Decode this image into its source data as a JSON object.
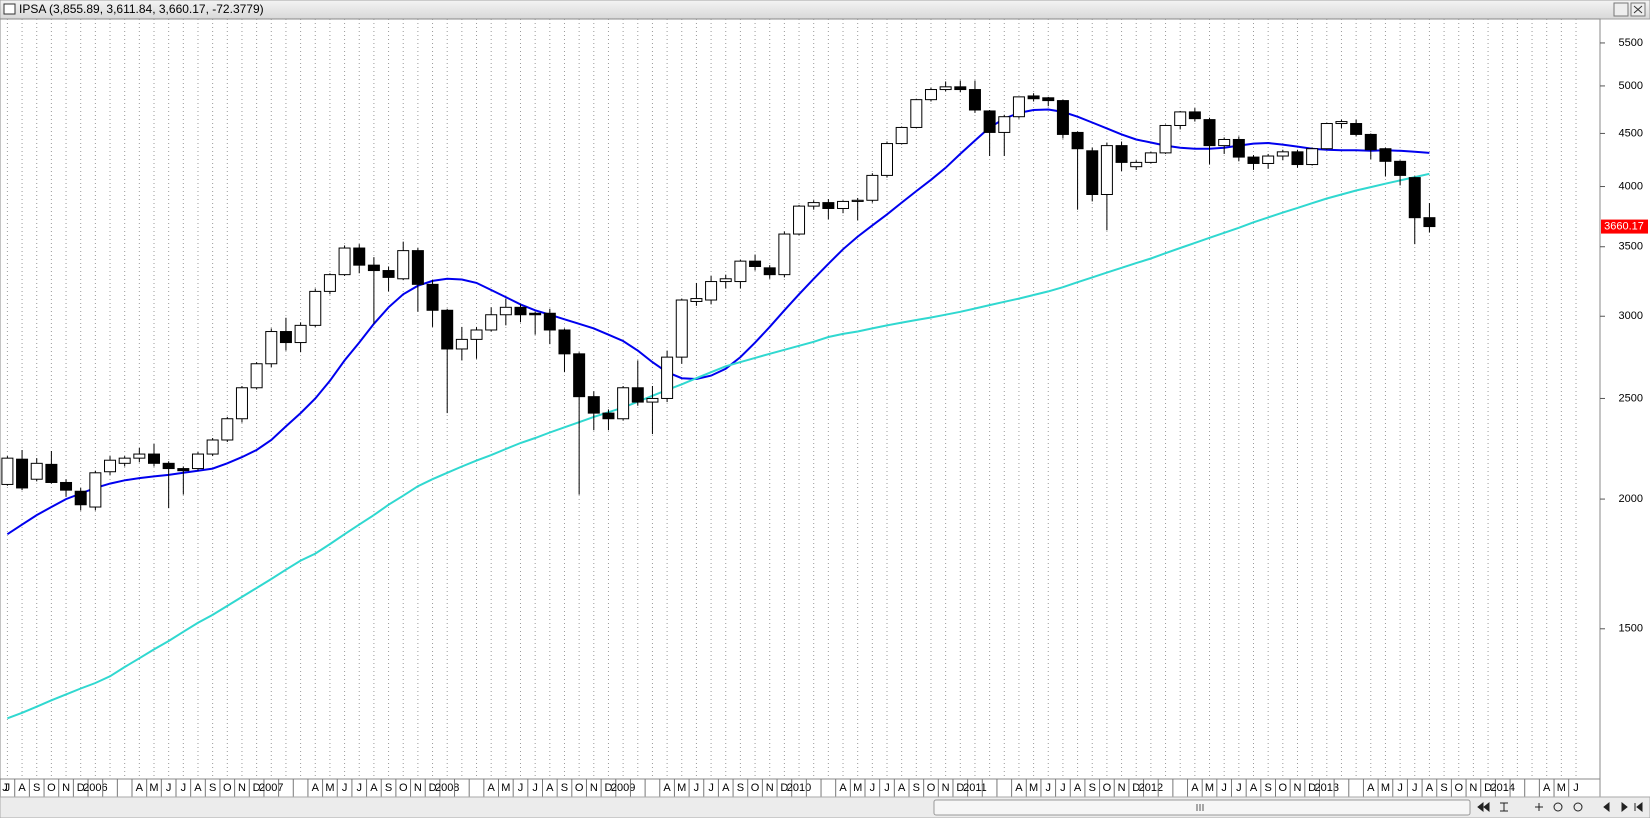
{
  "chart_data": {
    "type": "candlestick",
    "title": "IPSA (3,855.89, 3,611.84, 3,660.17, -72.3779)",
    "categories": [
      "J",
      "J",
      "A",
      "S",
      "O",
      "N",
      "D",
      "2006",
      null,
      null,
      "A",
      "M",
      "J",
      "J",
      "A",
      "S",
      "O",
      "N",
      "D",
      "2007",
      null,
      null,
      "A",
      "M",
      "J",
      "J",
      "A",
      "S",
      "O",
      "N",
      "D",
      "2008",
      null,
      null,
      "A",
      "M",
      "J",
      "J",
      "A",
      "S",
      "O",
      "N",
      "D",
      "2009",
      null,
      null,
      "A",
      "M",
      "J",
      "J",
      "A",
      "S",
      "O",
      "N",
      "D",
      "2010",
      null,
      null,
      "A",
      "M",
      "J",
      "J",
      "A",
      "S",
      "O",
      "N",
      "D",
      "2011",
      null,
      null,
      "A",
      "M",
      "J",
      "J",
      "A",
      "S",
      "O",
      "N",
      "D",
      "2012",
      null,
      null,
      "A",
      "M",
      "J",
      "J",
      "A",
      "S",
      "O",
      "N",
      "D",
      "2013",
      null,
      null,
      "A",
      "M",
      "J",
      "J",
      "A",
      "S",
      "O",
      "N",
      "D",
      "2014",
      null,
      null,
      "A",
      "M",
      "J"
    ],
    "open": [
      null,
      2066,
      2185,
      2090,
      2160,
      2075,
      2035,
      1965,
      2125,
      2165,
      2190,
      2210,
      2165,
      2140,
      2140,
      2210,
      2280,
      2390,
      2560,
      2700,
      2900,
      2830,
      2940,
      3170,
      3290,
      3490,
      3360,
      3320,
      3260,
      3470,
      3220,
      3040,
      2790,
      2850,
      2910,
      3010,
      3060,
      3020,
      3020,
      2910,
      2760,
      2510,
      2420,
      2390,
      2560,
      2480,
      2500,
      2740,
      3100,
      3110,
      3240,
      3240,
      3390,
      3340,
      3290,
      3600,
      3830,
      3860,
      3810,
      3870,
      3880,
      4100,
      4400,
      4560,
      4850,
      4960,
      4990,
      4960,
      4730,
      4510,
      4670,
      4890,
      4870,
      4840,
      4510,
      4330,
      3930,
      4380,
      4180,
      4220,
      4310,
      4580,
      4720,
      4640,
      4380,
      4440,
      4270,
      4210,
      4280,
      4320,
      4200,
      4350,
      4600,
      4600,
      4490,
      4350,
      4230,
      4080,
      3733,
      null,
      null,
      null,
      null,
      null,
      null,
      null,
      null,
      null,
      null
    ],
    "high": [
      null,
      2200,
      2230,
      2190,
      2225,
      2090,
      2050,
      2130,
      2200,
      2200,
      2240,
      2260,
      2175,
      2150,
      2220,
      2290,
      2400,
      2570,
      2710,
      2920,
      2990,
      2960,
      3190,
      3300,
      3510,
      3520,
      3420,
      3350,
      3540,
      3490,
      3250,
      3050,
      2930,
      2930,
      3060,
      3120,
      3080,
      3030,
      3050,
      2920,
      2770,
      2540,
      2440,
      2570,
      2720,
      2570,
      2780,
      3120,
      3230,
      3280,
      3290,
      3400,
      3440,
      3360,
      3620,
      3840,
      3880,
      3890,
      3880,
      3900,
      4120,
      4420,
      4570,
      4860,
      4980,
      5050,
      5060,
      5060,
      4740,
      4690,
      4880,
      4920,
      4880,
      4850,
      4520,
      4360,
      4410,
      4420,
      4240,
      4320,
      4590,
      4730,
      4760,
      4660,
      4460,
      4470,
      4290,
      4300,
      4340,
      4340,
      4360,
      4610,
      4640,
      4640,
      4500,
      4360,
      4240,
      4090,
      3855.89,
      null,
      null,
      null,
      null,
      null,
      null,
      null,
      null,
      null,
      null
    ],
    "low": [
      null,
      2060,
      2040,
      2080,
      2070,
      2010,
      1950,
      1950,
      2110,
      2150,
      2170,
      2150,
      1960,
      2020,
      2130,
      2200,
      2270,
      2370,
      2550,
      2680,
      2780,
      2770,
      2930,
      3150,
      3280,
      3300,
      2950,
      3170,
      3250,
      3030,
      2930,
      2420,
      2720,
      2730,
      2900,
      2940,
      2960,
      2880,
      2820,
      2650,
      2020,
      2330,
      2330,
      2380,
      2460,
      2310,
      2480,
      2700,
      3070,
      3080,
      3190,
      3190,
      3320,
      3260,
      3270,
      3590,
      3800,
      3720,
      3770,
      3710,
      3860,
      4080,
      4390,
      4550,
      4830,
      4940,
      4930,
      4710,
      4280,
      4280,
      4650,
      4830,
      4780,
      4450,
      3800,
      3870,
      3630,
      4140,
      4150,
      4210,
      4300,
      4540,
      4620,
      4200,
      4300,
      4230,
      4150,
      4160,
      4240,
      4170,
      4190,
      4340,
      4550,
      4470,
      4250,
      4090,
      4010,
      3520,
      3611.84,
      null,
      null,
      null,
      null,
      null,
      null,
      null,
      null,
      null,
      null
    ],
    "close": [
      null,
      2190,
      2050,
      2165,
      2075,
      2040,
      1975,
      2120,
      2180,
      2190,
      2210,
      2165,
      2140,
      2130,
      2210,
      2280,
      2390,
      2560,
      2700,
      2900,
      2830,
      2940,
      3170,
      3290,
      3490,
      3360,
      3320,
      3270,
      3470,
      3220,
      3040,
      2790,
      2850,
      2910,
      3010,
      3060,
      3010,
      3010,
      2910,
      2760,
      2510,
      2420,
      2390,
      2560,
      2480,
      2500,
      2740,
      3110,
      3120,
      3240,
      3260,
      3390,
      3350,
      3290,
      3600,
      3830,
      3860,
      3810,
      3870,
      3880,
      4100,
      4400,
      4560,
      4850,
      4960,
      4990,
      4960,
      4740,
      4510,
      4670,
      4880,
      4860,
      4840,
      4490,
      4350,
      3930,
      4380,
      4220,
      4220,
      4310,
      4580,
      4720,
      4650,
      4380,
      4440,
      4270,
      4210,
      4280,
      4320,
      4200,
      4350,
      4600,
      4620,
      4490,
      4340,
      4230,
      4100,
      3733,
      3660.17,
      null,
      null,
      null,
      null,
      null,
      null,
      null,
      null,
      null,
      null
    ],
    "up_color": "#ffffff",
    "down_color": "#000000",
    "overlays": [
      {
        "color": "#0000ee",
        "values": [
          null,
          1850,
          1890,
          1930,
          1965,
          2000,
          2025,
          2050,
          2070,
          2085,
          2095,
          2103,
          2110,
          2120,
          2130,
          2140,
          2165,
          2195,
          2230,
          2280,
          2350,
          2420,
          2500,
          2600,
          2720,
          2830,
          2950,
          3060,
          3150,
          3210,
          3245,
          3260,
          3255,
          3230,
          3180,
          3130,
          3080,
          3040,
          3010,
          2980,
          2950,
          2920,
          2880,
          2840,
          2780,
          2710,
          2650,
          2615,
          2610,
          2630,
          2670,
          2740,
          2830,
          2930,
          3040,
          3150,
          3260,
          3370,
          3480,
          3580,
          3670,
          3760,
          3860,
          3960,
          4060,
          4170,
          4300,
          4430,
          4560,
          4650,
          4710,
          4740,
          4745,
          4720,
          4670,
          4610,
          4550,
          4490,
          4440,
          4410,
          4380,
          4360,
          4350,
          4350,
          4360,
          4380,
          4400,
          4405,
          4390,
          4370,
          4350,
          4340,
          4335,
          4335,
          4330,
          4335,
          4330,
          4320,
          4310,
          null,
          null,
          null,
          null,
          null,
          null,
          null,
          null,
          null,
          null
        ]
      },
      {
        "color": "#30d8d0",
        "values": [
          null,
          1230,
          1245,
          1262,
          1280,
          1297,
          1314,
          1330,
          1350,
          1378,
          1405,
          1433,
          1460,
          1490,
          1520,
          1547,
          1578,
          1610,
          1642,
          1675,
          1710,
          1745,
          1772,
          1810,
          1850,
          1890,
          1930,
          1975,
          2015,
          2058,
          2090,
          2120,
          2150,
          2178,
          2205,
          2235,
          2265,
          2290,
          2318,
          2345,
          2372,
          2400,
          2425,
          2450,
          2482,
          2515,
          2548,
          2580,
          2615,
          2650,
          2685,
          2710,
          2735,
          2760,
          2785,
          2810,
          2835,
          2865,
          2885,
          2900,
          2920,
          2940,
          2958,
          2975,
          2992,
          3010,
          3030,
          3052,
          3075,
          3098,
          3120,
          3145,
          3170,
          3200,
          3235,
          3270,
          3305,
          3340,
          3375,
          3410,
          3450,
          3490,
          3530,
          3570,
          3610,
          3650,
          3695,
          3735,
          3775,
          3815,
          3855,
          3895,
          3930,
          3965,
          3995,
          4025,
          4055,
          4085,
          4115,
          null,
          null,
          null,
          null,
          null,
          null,
          null,
          null,
          null,
          null
        ]
      }
    ],
    "ylim": [
      1075,
      5800
    ],
    "yticks": [
      1500,
      2000,
      2500,
      3000,
      3500,
      4000,
      4500,
      5000,
      5500
    ],
    "log_scale": true,
    "grid": "x",
    "last_label_color": "#ff0000"
  }
}
